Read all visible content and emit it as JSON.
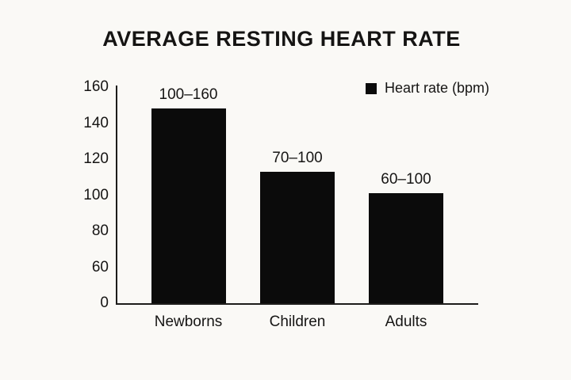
{
  "page": {
    "background_color": "#faf9f6",
    "text_color": "#161514"
  },
  "chart_data": {
    "type": "bar",
    "title": "AVERAGE RESTING HEART RATE",
    "legend": {
      "label": "Heart rate (bpm)",
      "swatch_color": "#0b0b0b",
      "position": "top-right"
    },
    "categories": [
      "Newborns",
      "Children",
      "Adults"
    ],
    "series": [
      {
        "name": "Heart rate (bpm)",
        "range_labels": [
          "100–160",
          "70–100",
          "60–100"
        ],
        "plotted_values": [
          148,
          113,
          101
        ]
      }
    ],
    "bar_color": "#0b0b0b",
    "y_axis": {
      "tick_labels": [
        0,
        60,
        80,
        100,
        120,
        140,
        160
      ],
      "ticks_evenly_spaced": true,
      "scale_note": "tick labels evenly spaced, axis nonlinear between 0 and 60"
    },
    "x_axis": {
      "tick_labels": [
        "Newborns",
        "Children",
        "Adults"
      ]
    },
    "grid": false,
    "ylim": [
      0,
      160
    ]
  }
}
